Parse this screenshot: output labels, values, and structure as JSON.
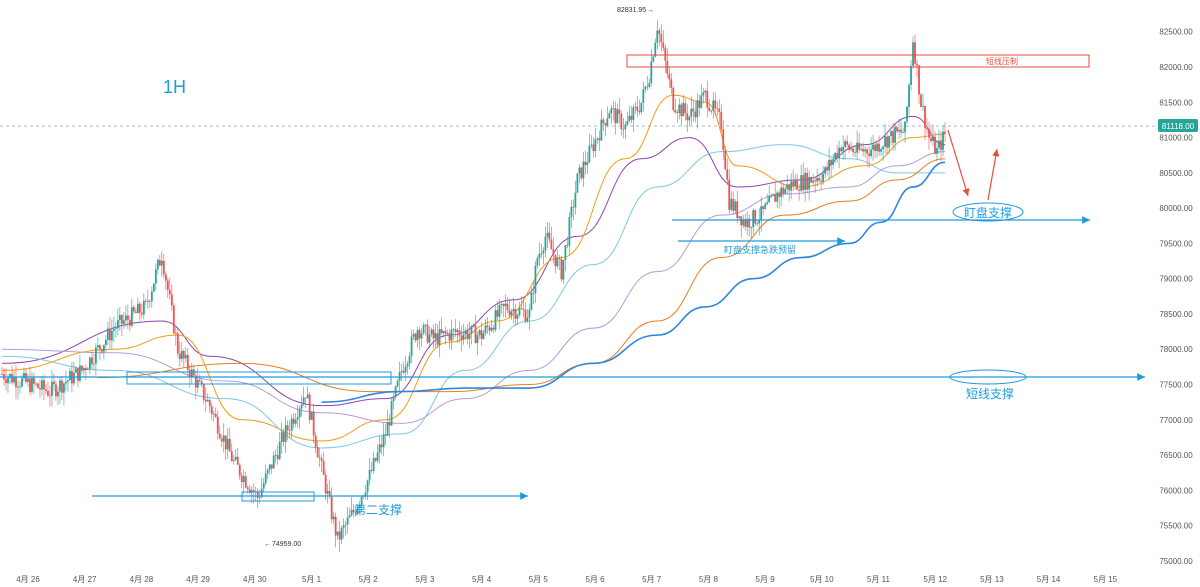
{
  "chart_data": {
    "type": "candlestick",
    "timeframe_label": "1H",
    "y_axis": {
      "position": "right",
      "range": [
        74800,
        82950
      ],
      "step": 500,
      "ticks": [
        "75000.00",
        "75500.00",
        "76000.00",
        "76500.00",
        "77000.00",
        "77500.00",
        "78000.00",
        "78500.00",
        "79000.00",
        "79500.00",
        "80000.00",
        "80500.00",
        "81000.00",
        "81500.00",
        "82000.00",
        "82500.00"
      ]
    },
    "x_axis": {
      "labels": [
        "4月 26",
        "4月 27",
        "4月 28",
        "4月 29",
        "4月 30",
        "5月 1",
        "5月 2",
        "5月 3",
        "5月 4",
        "5月 5",
        "5月 6",
        "5月 7",
        "5月 8",
        "5月 9",
        "5月 10",
        "5月 11",
        "5月 12",
        "5月 13",
        "5月 14",
        "5月 15"
      ]
    },
    "current_price": {
      "value": 81118,
      "label": "81118.00",
      "color": "#26a69a"
    },
    "high_label": "82831.95",
    "low_label": "74959.00",
    "price_path": [
      [
        0,
        77650
      ],
      [
        6,
        77400
      ],
      [
        10,
        77700
      ],
      [
        14,
        78300
      ],
      [
        18,
        78600
      ],
      [
        20,
        79350
      ],
      [
        22,
        78000
      ],
      [
        26,
        77200
      ],
      [
        29,
        76400
      ],
      [
        32,
        75900
      ],
      [
        35,
        76700
      ],
      [
        38,
        77400
      ],
      [
        40,
        76300
      ],
      [
        42,
        75300
      ],
      [
        44,
        75700
      ],
      [
        46,
        76200
      ],
      [
        48,
        76800
      ],
      [
        50,
        77700
      ],
      [
        52,
        78300
      ],
      [
        54,
        78150
      ],
      [
        57,
        78250
      ],
      [
        60,
        78200
      ],
      [
        63,
        78600
      ],
      [
        66,
        78500
      ],
      [
        67,
        79300
      ],
      [
        68,
        79600
      ],
      [
        70,
        79100
      ],
      [
        72,
        80400
      ],
      [
        74,
        80900
      ],
      [
        76,
        81400
      ],
      [
        78,
        81150
      ],
      [
        80,
        81500
      ],
      [
        81,
        81900
      ],
      [
        82,
        82600
      ],
      [
        84,
        81500
      ],
      [
        86,
        81300
      ],
      [
        88,
        81600
      ],
      [
        90,
        81200
      ],
      [
        91,
        80100
      ],
      [
        93,
        79800
      ],
      [
        95,
        79900
      ],
      [
        97,
        80200
      ],
      [
        99,
        80350
      ],
      [
        101,
        80400
      ],
      [
        103,
        80500
      ],
      [
        105,
        80900
      ],
      [
        107,
        80800
      ],
      [
        109,
        80850
      ],
      [
        111,
        81000
      ],
      [
        113,
        81100
      ],
      [
        114,
        82400
      ],
      [
        115,
        81500
      ],
      [
        116,
        81000
      ],
      [
        117,
        80800
      ],
      [
        118,
        81050
      ]
    ],
    "ma_lines": [
      {
        "color": "#8e44ad",
        "points": [
          [
            0,
            77800
          ],
          [
            20,
            78400
          ],
          [
            26,
            77900
          ],
          [
            40,
            77200
          ],
          [
            48,
            77300
          ],
          [
            56,
            78200
          ],
          [
            64,
            78700
          ],
          [
            72,
            79600
          ],
          [
            80,
            80700
          ],
          [
            86,
            81000
          ],
          [
            92,
            80300
          ],
          [
            100,
            80400
          ],
          [
            108,
            80900
          ],
          [
            114,
            81300
          ],
          [
            118,
            80900
          ]
        ]
      },
      {
        "color": "#f39c12",
        "points": [
          [
            0,
            77700
          ],
          [
            14,
            78000
          ],
          [
            22,
            78200
          ],
          [
            30,
            77000
          ],
          [
            40,
            76700
          ],
          [
            48,
            77000
          ],
          [
            56,
            78100
          ],
          [
            62,
            78400
          ],
          [
            70,
            79300
          ],
          [
            78,
            80700
          ],
          [
            84,
            81600
          ],
          [
            88,
            81500
          ],
          [
            92,
            80600
          ],
          [
            100,
            80300
          ],
          [
            108,
            80600
          ],
          [
            114,
            81000
          ],
          [
            118,
            81050
          ]
        ]
      },
      {
        "color": "#7ec8e3",
        "points": [
          [
            0,
            77900
          ],
          [
            14,
            77700
          ],
          [
            28,
            77300
          ],
          [
            40,
            76600
          ],
          [
            50,
            76800
          ],
          [
            58,
            77700
          ],
          [
            66,
            78400
          ],
          [
            74,
            79200
          ],
          [
            82,
            80300
          ],
          [
            90,
            80800
          ],
          [
            98,
            80900
          ],
          [
            106,
            80700
          ],
          [
            112,
            80500
          ],
          [
            118,
            80500
          ]
        ]
      },
      {
        "color": "#b39ddb",
        "points": [
          [
            0,
            78000
          ],
          [
            14,
            77950
          ],
          [
            28,
            77550
          ],
          [
            40,
            77100
          ],
          [
            50,
            76950
          ],
          [
            58,
            77300
          ],
          [
            66,
            77700
          ],
          [
            74,
            78300
          ],
          [
            82,
            79100
          ],
          [
            90,
            79900
          ],
          [
            98,
            80200
          ],
          [
            106,
            80300
          ],
          [
            112,
            80600
          ],
          [
            118,
            80800
          ]
        ]
      },
      {
        "color": "#e67e22",
        "points": [
          [
            12,
            77600
          ],
          [
            30,
            77800
          ],
          [
            46,
            77400
          ],
          [
            56,
            77400
          ],
          [
            66,
            77500
          ],
          [
            74,
            77800
          ],
          [
            82,
            78400
          ],
          [
            90,
            79300
          ],
          [
            98,
            79900
          ],
          [
            106,
            80100
          ],
          [
            112,
            80400
          ],
          [
            118,
            80700
          ]
        ]
      },
      {
        "color": "#2e86de",
        "points": [
          [
            40,
            77250
          ],
          [
            50,
            77400
          ],
          [
            58,
            77450
          ],
          [
            66,
            77450
          ],
          [
            74,
            77800
          ],
          [
            82,
            78200
          ],
          [
            88,
            78600
          ],
          [
            94,
            79000
          ],
          [
            100,
            79300
          ],
          [
            106,
            79500
          ],
          [
            110,
            79800
          ],
          [
            114,
            80300
          ],
          [
            118,
            80650
          ]
        ]
      }
    ],
    "annotations": {
      "top_resistance_label": "短线压制",
      "support_text_1": "盯盘支撑",
      "support_text_2": "盯盘支撑急跌预留",
      "support_text_3": "短线支撑",
      "support_text_4": "第二支撑"
    }
  }
}
